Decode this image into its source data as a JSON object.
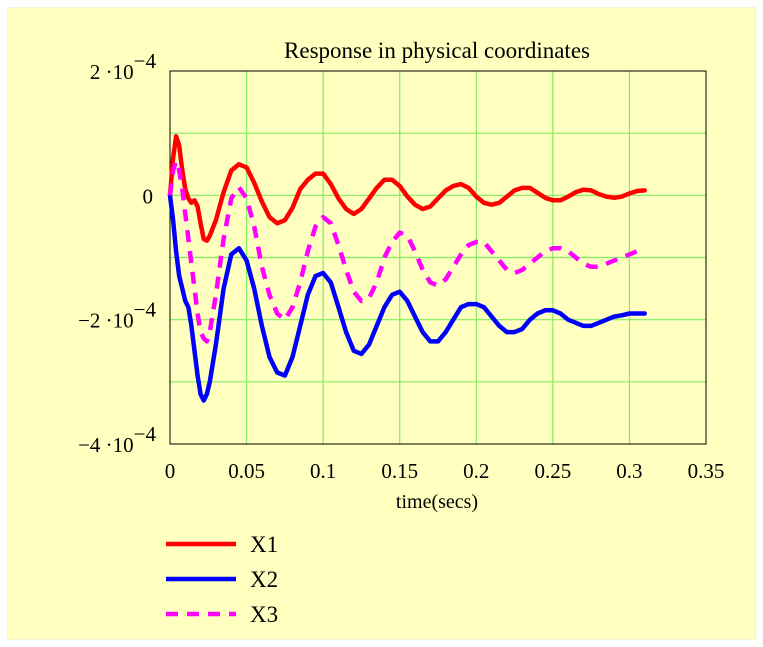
{
  "chart_data": {
    "type": "line",
    "title": "Response in physical coordinates",
    "xlabel": "time(secs)",
    "ylabel": "",
    "xlim": [
      0,
      0.35
    ],
    "ylim": [
      -0.0004,
      0.0002
    ],
    "xticks": [
      {
        "value": 0,
        "label": "0"
      },
      {
        "value": 0.05,
        "label": "0.05"
      },
      {
        "value": 0.1,
        "label": "0.1"
      },
      {
        "value": 0.15,
        "label": "0.15"
      },
      {
        "value": 0.2,
        "label": "0.2"
      },
      {
        "value": 0.25,
        "label": "0.25"
      },
      {
        "value": 0.3,
        "label": "0.3"
      },
      {
        "value": 0.35,
        "label": "0.35"
      }
    ],
    "yticks": [
      {
        "value": 0.0002,
        "mantissa": "2",
        "exponent": "−4"
      },
      {
        "value": 0,
        "mantissa": "0",
        "exponent": ""
      },
      {
        "value": -0.0002,
        "mantissa": "−2",
        "exponent": "−4"
      },
      {
        "value": -0.0004,
        "mantissa": "−4",
        "exponent": "−4"
      }
    ],
    "grid": true,
    "legend": "bottom-left",
    "series": [
      {
        "name": "X1",
        "color": "#ff0000",
        "dash": "solid",
        "points": [
          [
            0,
            0
          ],
          [
            0.002,
            6e-05
          ],
          [
            0.004,
            9.5e-05
          ],
          [
            0.006,
            8e-05
          ],
          [
            0.008,
            4e-05
          ],
          [
            0.01,
            1e-05
          ],
          [
            0.012,
            -5e-06
          ],
          [
            0.014,
            -1.2e-05
          ],
          [
            0.016,
            -8e-06
          ],
          [
            0.018,
            -1.8e-05
          ],
          [
            0.02,
            -4.5e-05
          ],
          [
            0.022,
            -7e-05
          ],
          [
            0.024,
            -7.3e-05
          ],
          [
            0.026,
            -6.5e-05
          ],
          [
            0.03,
            -4e-05
          ],
          [
            0.035,
            5e-06
          ],
          [
            0.04,
            4e-05
          ],
          [
            0.045,
            5e-05
          ],
          [
            0.05,
            4.5e-05
          ],
          [
            0.055,
            2e-05
          ],
          [
            0.06,
            -1e-05
          ],
          [
            0.065,
            -3.5e-05
          ],
          [
            0.07,
            -4.5e-05
          ],
          [
            0.075,
            -4e-05
          ],
          [
            0.08,
            -2e-05
          ],
          [
            0.085,
            1e-05
          ],
          [
            0.09,
            2.5e-05
          ],
          [
            0.095,
            3.5e-05
          ],
          [
            0.1,
            3.5e-05
          ],
          [
            0.105,
            1.8e-05
          ],
          [
            0.11,
            -5e-06
          ],
          [
            0.115,
            -2.2e-05
          ],
          [
            0.12,
            -3e-05
          ],
          [
            0.125,
            -2.2e-05
          ],
          [
            0.13,
            -5e-06
          ],
          [
            0.135,
            1.2e-05
          ],
          [
            0.14,
            2.5e-05
          ],
          [
            0.145,
            2.5e-05
          ],
          [
            0.15,
            1.5e-05
          ],
          [
            0.155,
            -2e-06
          ],
          [
            0.16,
            -1.5e-05
          ],
          [
            0.165,
            -2.2e-05
          ],
          [
            0.17,
            -1.8e-05
          ],
          [
            0.175,
            -5e-06
          ],
          [
            0.18,
            8e-06
          ],
          [
            0.185,
            1.5e-05
          ],
          [
            0.19,
            1.8e-05
          ],
          [
            0.195,
            1.2e-05
          ],
          [
            0.2,
            -2e-06
          ],
          [
            0.205,
            -1.2e-05
          ],
          [
            0.21,
            -1.5e-05
          ],
          [
            0.215,
            -1.2e-05
          ],
          [
            0.22,
            -2e-06
          ],
          [
            0.225,
            8e-06
          ],
          [
            0.23,
            1.2e-05
          ],
          [
            0.235,
            1.2e-05
          ],
          [
            0.24,
            4e-06
          ],
          [
            0.245,
            -4e-06
          ],
          [
            0.25,
            -8e-06
          ],
          [
            0.255,
            -8e-06
          ],
          [
            0.26,
            -2e-06
          ],
          [
            0.265,
            5e-06
          ],
          [
            0.27,
            9e-06
          ],
          [
            0.275,
            8e-06
          ],
          [
            0.28,
            2e-06
          ],
          [
            0.285,
            -2e-06
          ],
          [
            0.29,
            -4e-06
          ],
          [
            0.295,
            -2e-06
          ],
          [
            0.3,
            3e-06
          ],
          [
            0.305,
            7e-06
          ],
          [
            0.31,
            8e-06
          ]
        ]
      },
      {
        "name": "X2",
        "color": "#0000ff",
        "dash": "solid",
        "points": [
          [
            0,
            0
          ],
          [
            0.002,
            -4e-05
          ],
          [
            0.004,
            -9e-05
          ],
          [
            0.006,
            -0.00013
          ],
          [
            0.008,
            -0.00015
          ],
          [
            0.01,
            -0.00017
          ],
          [
            0.012,
            -0.00018
          ],
          [
            0.014,
            -0.00021
          ],
          [
            0.016,
            -0.00025
          ],
          [
            0.018,
            -0.00029
          ],
          [
            0.02,
            -0.00032
          ],
          [
            0.022,
            -0.00033
          ],
          [
            0.024,
            -0.00032
          ],
          [
            0.026,
            -0.0003
          ],
          [
            0.03,
            -0.00024
          ],
          [
            0.035,
            -0.00015
          ],
          [
            0.04,
            -9.5e-05
          ],
          [
            0.045,
            -8.5e-05
          ],
          [
            0.05,
            -0.000105
          ],
          [
            0.055,
            -0.00015
          ],
          [
            0.06,
            -0.00021
          ],
          [
            0.065,
            -0.00026
          ],
          [
            0.07,
            -0.000285
          ],
          [
            0.075,
            -0.00029
          ],
          [
            0.08,
            -0.00026
          ],
          [
            0.085,
            -0.00021
          ],
          [
            0.09,
            -0.00016
          ],
          [
            0.095,
            -0.00013
          ],
          [
            0.1,
            -0.000125
          ],
          [
            0.105,
            -0.00014
          ],
          [
            0.11,
            -0.00018
          ],
          [
            0.115,
            -0.00022
          ],
          [
            0.12,
            -0.00025
          ],
          [
            0.125,
            -0.000255
          ],
          [
            0.13,
            -0.00024
          ],
          [
            0.135,
            -0.00021
          ],
          [
            0.14,
            -0.00018
          ],
          [
            0.145,
            -0.00016
          ],
          [
            0.15,
            -0.000155
          ],
          [
            0.155,
            -0.00017
          ],
          [
            0.16,
            -0.000195
          ],
          [
            0.165,
            -0.00022
          ],
          [
            0.17,
            -0.000235
          ],
          [
            0.175,
            -0.000235
          ],
          [
            0.18,
            -0.00022
          ],
          [
            0.185,
            -0.0002
          ],
          [
            0.19,
            -0.00018
          ],
          [
            0.195,
            -0.000175
          ],
          [
            0.2,
            -0.000175
          ],
          [
            0.205,
            -0.00018
          ],
          [
            0.21,
            -0.000195
          ],
          [
            0.215,
            -0.00021
          ],
          [
            0.22,
            -0.00022
          ],
          [
            0.225,
            -0.00022
          ],
          [
            0.23,
            -0.000215
          ],
          [
            0.235,
            -0.0002
          ],
          [
            0.24,
            -0.00019
          ],
          [
            0.245,
            -0.000185
          ],
          [
            0.25,
            -0.000185
          ],
          [
            0.255,
            -0.00019
          ],
          [
            0.26,
            -0.0002
          ],
          [
            0.265,
            -0.000205
          ],
          [
            0.27,
            -0.00021
          ],
          [
            0.275,
            -0.00021
          ],
          [
            0.28,
            -0.000205
          ],
          [
            0.285,
            -0.0002
          ],
          [
            0.29,
            -0.000195
          ],
          [
            0.295,
            -0.000193
          ],
          [
            0.3,
            -0.00019
          ],
          [
            0.305,
            -0.00019
          ],
          [
            0.31,
            -0.00019
          ]
        ]
      },
      {
        "name": "X3",
        "color": "#ff00ff",
        "dash": "dashed",
        "points": [
          [
            0,
            0
          ],
          [
            0.002,
            4e-05
          ],
          [
            0.004,
            5.5e-05
          ],
          [
            0.006,
            4e-05
          ],
          [
            0.008,
            1e-05
          ],
          [
            0.01,
            -3e-05
          ],
          [
            0.012,
            -7e-05
          ],
          [
            0.014,
            -0.00011
          ],
          [
            0.016,
            -0.00015
          ],
          [
            0.018,
            -0.00019
          ],
          [
            0.02,
            -0.00022
          ],
          [
            0.022,
            -0.00023
          ],
          [
            0.024,
            -0.000235
          ],
          [
            0.026,
            -0.00022
          ],
          [
            0.03,
            -0.00016
          ],
          [
            0.035,
            -7e-05
          ],
          [
            0.04,
            -5e-06
          ],
          [
            0.045,
            1.3e-05
          ],
          [
            0.05,
            -5e-06
          ],
          [
            0.055,
            -5e-05
          ],
          [
            0.06,
            -0.000115
          ],
          [
            0.065,
            -0.00016
          ],
          [
            0.07,
            -0.00019
          ],
          [
            0.075,
            -0.0002
          ],
          [
            0.08,
            -0.00018
          ],
          [
            0.085,
            -0.00014
          ],
          [
            0.09,
            -9e-05
          ],
          [
            0.095,
            -5e-05
          ],
          [
            0.1,
            -3.5e-05
          ],
          [
            0.105,
            -4.5e-05
          ],
          [
            0.11,
            -8e-05
          ],
          [
            0.115,
            -0.00012
          ],
          [
            0.12,
            -0.000155
          ],
          [
            0.125,
            -0.00017
          ],
          [
            0.13,
            -0.000165
          ],
          [
            0.135,
            -0.00014
          ],
          [
            0.14,
            -0.0001
          ],
          [
            0.145,
            -7.5e-05
          ],
          [
            0.15,
            -6e-05
          ],
          [
            0.155,
            -6.5e-05
          ],
          [
            0.16,
            -9e-05
          ],
          [
            0.165,
            -0.00012
          ],
          [
            0.17,
            -0.00014
          ],
          [
            0.175,
            -0.000145
          ],
          [
            0.18,
            -0.000135
          ],
          [
            0.185,
            -0.000115
          ],
          [
            0.19,
            -9.5e-05
          ],
          [
            0.195,
            -8e-05
          ],
          [
            0.2,
            -7.5e-05
          ],
          [
            0.205,
            -7.5e-05
          ],
          [
            0.21,
            -9e-05
          ],
          [
            0.215,
            -0.000105
          ],
          [
            0.22,
            -0.00012
          ],
          [
            0.225,
            -0.000125
          ],
          [
            0.23,
            -0.00012
          ],
          [
            0.235,
            -0.00011
          ],
          [
            0.24,
            -0.0001
          ],
          [
            0.245,
            -9e-05
          ],
          [
            0.25,
            -8.5e-05
          ],
          [
            0.255,
            -8.5e-05
          ],
          [
            0.26,
            -9e-05
          ],
          [
            0.265,
            -0.0001
          ],
          [
            0.27,
            -0.00011
          ],
          [
            0.275,
            -0.000115
          ],
          [
            0.28,
            -0.000115
          ],
          [
            0.285,
            -0.00011
          ],
          [
            0.29,
            -0.000105
          ],
          [
            0.295,
            -0.0001
          ],
          [
            0.3,
            -9.5e-05
          ],
          [
            0.305,
            -9e-05
          ],
          [
            0.31,
            -9e-05
          ]
        ]
      }
    ]
  }
}
